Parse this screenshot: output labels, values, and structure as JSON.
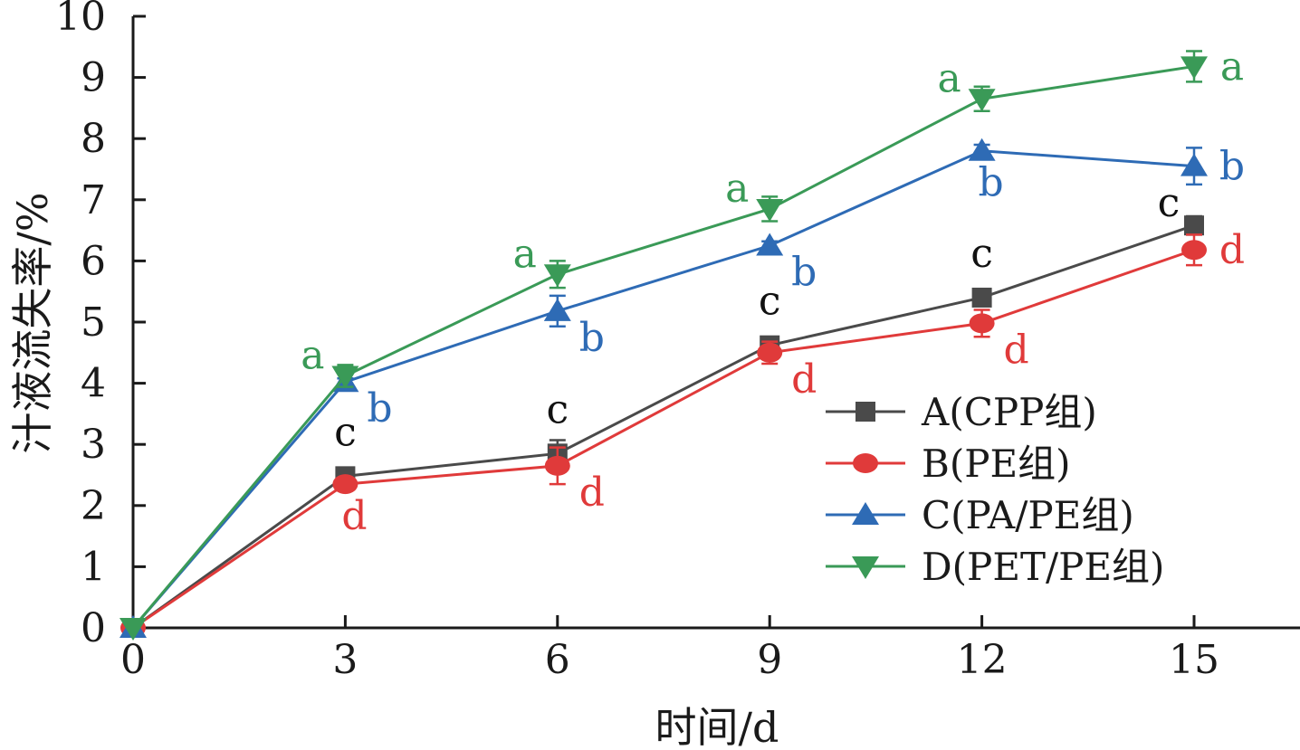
{
  "chart_data": {
    "type": "line",
    "xlabel": "时间/d",
    "ylabel": "汁液流失率/%",
    "x": [
      0,
      3,
      6,
      9,
      12,
      15
    ],
    "xlim": [
      0,
      16.5
    ],
    "ylim": [
      0,
      10
    ],
    "xticks": [
      0,
      3,
      6,
      9,
      12,
      15
    ],
    "yticks": [
      0,
      1,
      2,
      3,
      4,
      5,
      6,
      7,
      8,
      9,
      10
    ],
    "grid": false,
    "legend_position": "center-right",
    "series": [
      {
        "name": "A(CPP组)",
        "color": "#4a4a4a",
        "marker": "square",
        "values": [
          0,
          2.48,
          2.85,
          4.62,
          5.4,
          6.58
        ],
        "errors": [
          0,
          0.08,
          0.22,
          0.1,
          0.08,
          0.15
        ],
        "sig": [
          "",
          "c",
          "c",
          "c",
          "c",
          "c"
        ],
        "sig_pos": [
          "",
          "above",
          "above",
          "above",
          "above",
          "above-left"
        ]
      },
      {
        "name": "B(PE组)",
        "color": "#e03a3a",
        "marker": "circle",
        "values": [
          0,
          2.35,
          2.65,
          4.5,
          4.98,
          6.18
        ],
        "errors": [
          0,
          0.05,
          0.3,
          0.18,
          0.22,
          0.25
        ],
        "sig": [
          "",
          "d",
          "d",
          "d",
          "d",
          "d"
        ],
        "sig_pos": [
          "",
          "below",
          "right-below",
          "right-below",
          "right-below",
          "right"
        ]
      },
      {
        "name": "C(PA/PE组)",
        "color": "#2e6bb5",
        "marker": "triangle-up",
        "values": [
          0,
          4.02,
          5.18,
          6.25,
          7.8,
          7.55
        ],
        "errors": [
          0,
          0.06,
          0.25,
          0.07,
          0.1,
          0.3
        ],
        "sig": [
          "",
          "b",
          "b",
          "b",
          "b",
          "b"
        ],
        "sig_pos": [
          "",
          "right-below",
          "right-below",
          "right-below",
          "below",
          "right"
        ]
      },
      {
        "name": "D(PET/PE组)",
        "color": "#3a9a57",
        "marker": "triangle-down",
        "values": [
          0,
          4.12,
          5.78,
          6.85,
          8.65,
          9.18
        ],
        "errors": [
          0,
          0.18,
          0.22,
          0.2,
          0.2,
          0.25
        ],
        "sig": [
          "",
          "a",
          "a",
          "a",
          "a",
          "a"
        ],
        "sig_pos": [
          "",
          "left",
          "left",
          "left",
          "left",
          "right"
        ]
      }
    ]
  }
}
